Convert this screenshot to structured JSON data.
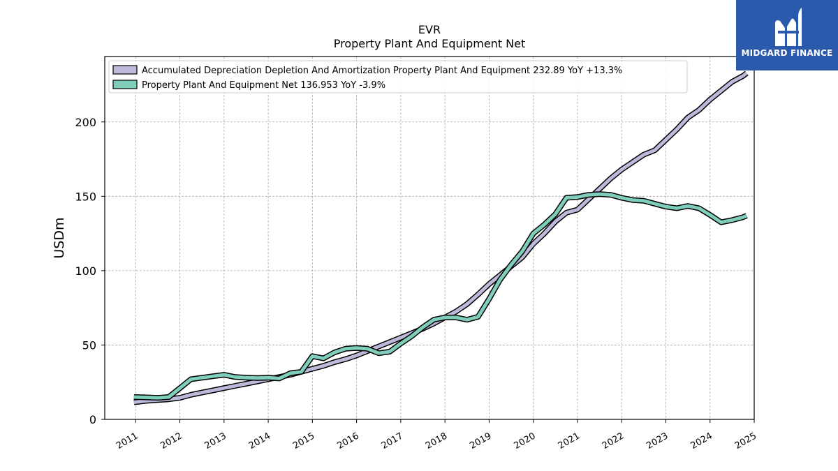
{
  "chart_data": {
    "type": "line",
    "title": "EVR",
    "subtitle": "Property Plant And Equipment Net",
    "ylabel": "USDm",
    "xlabel": "",
    "ylim": [
      0,
      244
    ],
    "xlim": [
      2010.3,
      2025.0
    ],
    "yticks": [
      0,
      50,
      100,
      150,
      200
    ],
    "xticks": [
      2011,
      2012,
      2013,
      2014,
      2015,
      2016,
      2017,
      2018,
      2019,
      2020,
      2021,
      2022,
      2023,
      2024,
      2025
    ],
    "xtick_labels": [
      "2011",
      "2012",
      "2013",
      "2014",
      "2015",
      "2016",
      "2017",
      "2018",
      "2019",
      "2020",
      "2021",
      "2022",
      "2023",
      "2024",
      "2025"
    ],
    "grid": true,
    "legend_position": "top-left",
    "series": [
      {
        "name": "Accumulated Depreciation Depletion And Amortization Property Plant And Equipment",
        "legend_label": "Accumulated Depreciation Depletion And Amortization Property Plant And Equipment  232.89 YoY +13.3%",
        "color": "#bdb9da",
        "x": [
          2010.96,
          2011.25,
          2011.5,
          2011.75,
          2012.0,
          2012.25,
          2012.5,
          2012.75,
          2013.0,
          2013.25,
          2013.5,
          2013.75,
          2014.0,
          2014.25,
          2014.5,
          2014.75,
          2015.0,
          2015.25,
          2015.5,
          2015.75,
          2016.0,
          2016.25,
          2016.5,
          2016.75,
          2017.0,
          2017.25,
          2017.5,
          2017.75,
          2018.0,
          2018.25,
          2018.5,
          2018.75,
          2019.0,
          2019.25,
          2019.5,
          2019.75,
          2020.0,
          2020.25,
          2020.5,
          2020.75,
          2021.0,
          2021.25,
          2021.5,
          2021.75,
          2022.0,
          2022.25,
          2022.5,
          2022.75,
          2023.0,
          2023.25,
          2023.5,
          2023.75,
          2024.0,
          2024.25,
          2024.5,
          2024.75,
          2024.83
        ],
        "values": [
          11.5,
          12.5,
          13.0,
          13.5,
          14.5,
          16.5,
          18.0,
          19.5,
          21.0,
          22.5,
          24.0,
          25.5,
          27.0,
          28.5,
          30.0,
          32.0,
          34.0,
          36.0,
          38.5,
          40.5,
          43.0,
          46.0,
          49.0,
          52.0,
          55.0,
          58.0,
          61.0,
          64.5,
          68.5,
          72.5,
          77.5,
          84.0,
          91.0,
          97.0,
          103.0,
          109.0,
          118.0,
          125.0,
          133.0,
          139.0,
          141.0,
          148.0,
          155.0,
          162.0,
          168.0,
          173.0,
          178.0,
          181.0,
          188.0,
          195.0,
          203.0,
          208.0,
          215.0,
          221.0,
          227.0,
          231.0,
          232.89
        ]
      },
      {
        "name": "Property Plant And Equipment Net",
        "legend_label": "Property Plant And Equipment Net  136.953 YoY -3.9%",
        "color": "#7fcdbb",
        "x": [
          2010.96,
          2011.25,
          2011.5,
          2011.75,
          2012.0,
          2012.25,
          2012.5,
          2012.75,
          2013.0,
          2013.25,
          2013.5,
          2013.75,
          2014.0,
          2014.25,
          2014.5,
          2014.75,
          2015.0,
          2015.25,
          2015.5,
          2015.75,
          2016.0,
          2016.25,
          2016.5,
          2016.75,
          2017.0,
          2017.25,
          2017.5,
          2017.75,
          2018.0,
          2018.25,
          2018.5,
          2018.75,
          2019.0,
          2019.25,
          2019.5,
          2019.75,
          2020.0,
          2020.25,
          2020.5,
          2020.75,
          2021.0,
          2021.25,
          2021.5,
          2021.75,
          2022.0,
          2022.25,
          2022.5,
          2022.75,
          2023.0,
          2023.25,
          2023.5,
          2023.75,
          2024.0,
          2024.25,
          2024.5,
          2024.75,
          2024.83
        ],
        "values": [
          15.0,
          14.8,
          14.5,
          15.0,
          21.0,
          27.0,
          28.0,
          29.0,
          30.0,
          28.5,
          28.0,
          27.8,
          28.0,
          27.5,
          31.0,
          32.0,
          42.5,
          41.0,
          45.0,
          47.5,
          48.0,
          47.5,
          44.5,
          45.5,
          51.0,
          56.0,
          62.0,
          67.0,
          68.5,
          68.5,
          67.0,
          69.0,
          81.0,
          94.0,
          104.0,
          113.0,
          125.0,
          131.0,
          138.0,
          149.0,
          149.5,
          151.0,
          151.5,
          151.0,
          149.0,
          147.5,
          147.0,
          145.0,
          143.0,
          142.0,
          143.5,
          142.0,
          137.5,
          132.5,
          134.0,
          136.0,
          136.953
        ]
      }
    ]
  },
  "brand": {
    "name": "MIDGARD FINANCE",
    "logo_icon": "midgard-logo-icon",
    "color": "#2b5aac"
  }
}
